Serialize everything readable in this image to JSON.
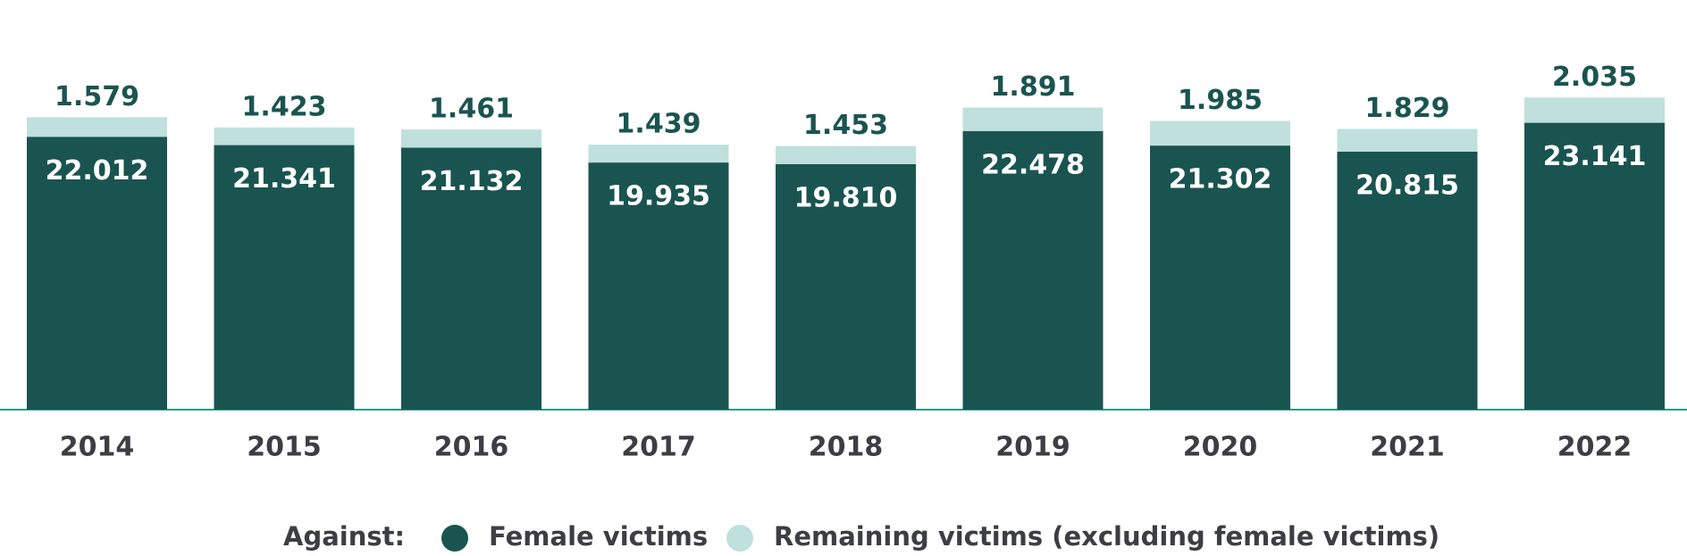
{
  "chart_data": {
    "type": "stacked_bar",
    "categories": [
      "2014",
      "2015",
      "2016",
      "2017",
      "2018",
      "2019",
      "2020",
      "2021",
      "2022"
    ],
    "legend_title": "Against:",
    "series": [
      {
        "name": "Female victims",
        "color": "#1a5450",
        "values": [
          22012,
          21341,
          21132,
          19935,
          19810,
          22478,
          21302,
          20815,
          23141
        ],
        "value_labels": [
          "22.012",
          "21.341",
          "21.132",
          "19.935",
          "19.810",
          "22.478",
          "21.302",
          "20.815",
          "23.141"
        ]
      },
      {
        "name": "Remaining victims (excluding female victims)",
        "color": "#bfe0dd",
        "values": [
          1579,
          1423,
          1461,
          1439,
          1453,
          1891,
          1985,
          1829,
          2035
        ],
        "value_labels": [
          "1.579",
          "1.423",
          "1.461",
          "1.439",
          "1.453",
          "1.891",
          "1.985",
          "1.829",
          "2.035"
        ]
      }
    ]
  }
}
